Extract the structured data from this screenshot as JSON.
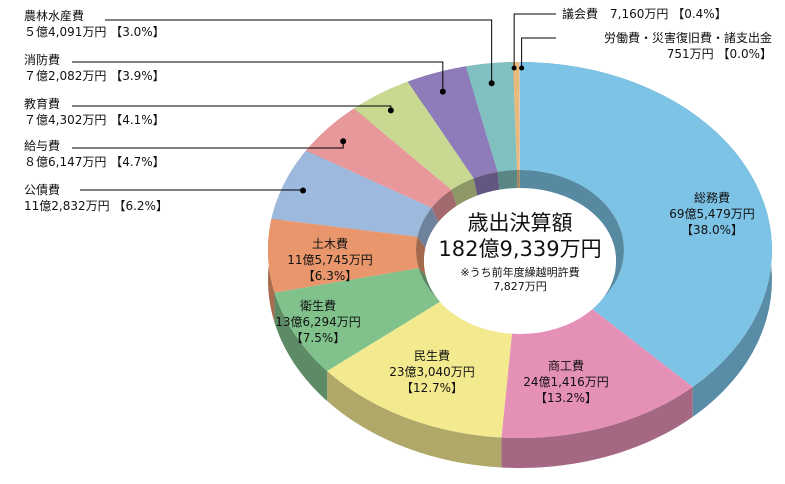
{
  "chart_data": {
    "type": "pie",
    "title": "歳出決算額",
    "total": "182億9,339万円",
    "note": "※うち前年度繰越明許費",
    "note_value": "7,827万円",
    "slices": [
      {
        "name": "総務費",
        "amount": "69億5,479万円",
        "pct_label": "【38.0%】",
        "value": 38.0,
        "color": "#7cc3e6"
      },
      {
        "name": "商工費",
        "amount": "24億1,416万円",
        "pct_label": "【13.2%】",
        "value": 13.2,
        "color": "#e590b6"
      },
      {
        "name": "民生費",
        "amount": "23億3,040万円",
        "pct_label": "【12.7%】",
        "value": 12.7,
        "color": "#f3ea90"
      },
      {
        "name": "衛生費",
        "amount": "13億6,294万円",
        "pct_label": "【7.5%】",
        "value": 7.5,
        "color": "#80c18c"
      },
      {
        "name": "土木費",
        "amount": "11億5,745万円",
        "pct_label": "【6.3%】",
        "value": 6.3,
        "color": "#e9966c"
      },
      {
        "name": "公債費",
        "amount": "11億2,832万円",
        "pct_label": "【6.2%】",
        "value": 6.2,
        "color": "#9db9de"
      },
      {
        "name": "給与費",
        "amount": "８億6,147万円",
        "pct_label": "【4.7%】",
        "value": 4.7,
        "color": "#e8979b"
      },
      {
        "name": "教育費",
        "amount": "７億4,302万円",
        "pct_label": "【4.1%】",
        "value": 4.1,
        "color": "#c9d992"
      },
      {
        "name": "消防費",
        "amount": "７億2,082万円",
        "pct_label": "【3.9%】",
        "value": 3.9,
        "color": "#8d7cb9"
      },
      {
        "name": "農林水産費",
        "amount": "５億4,091万円",
        "pct_label": "【3.0%】",
        "value": 3.0,
        "color": "#80c0c0"
      },
      {
        "name": "議会費",
        "amount": "7,160万円",
        "pct_label": "【0.4%】",
        "value": 0.4,
        "color": "#e9b97c"
      },
      {
        "name": "労働費・災害復旧費・諸支出金",
        "amount": "751万円",
        "pct_label": "【0.0%】",
        "value": 0.05,
        "color": "#d0d0d0"
      }
    ]
  }
}
